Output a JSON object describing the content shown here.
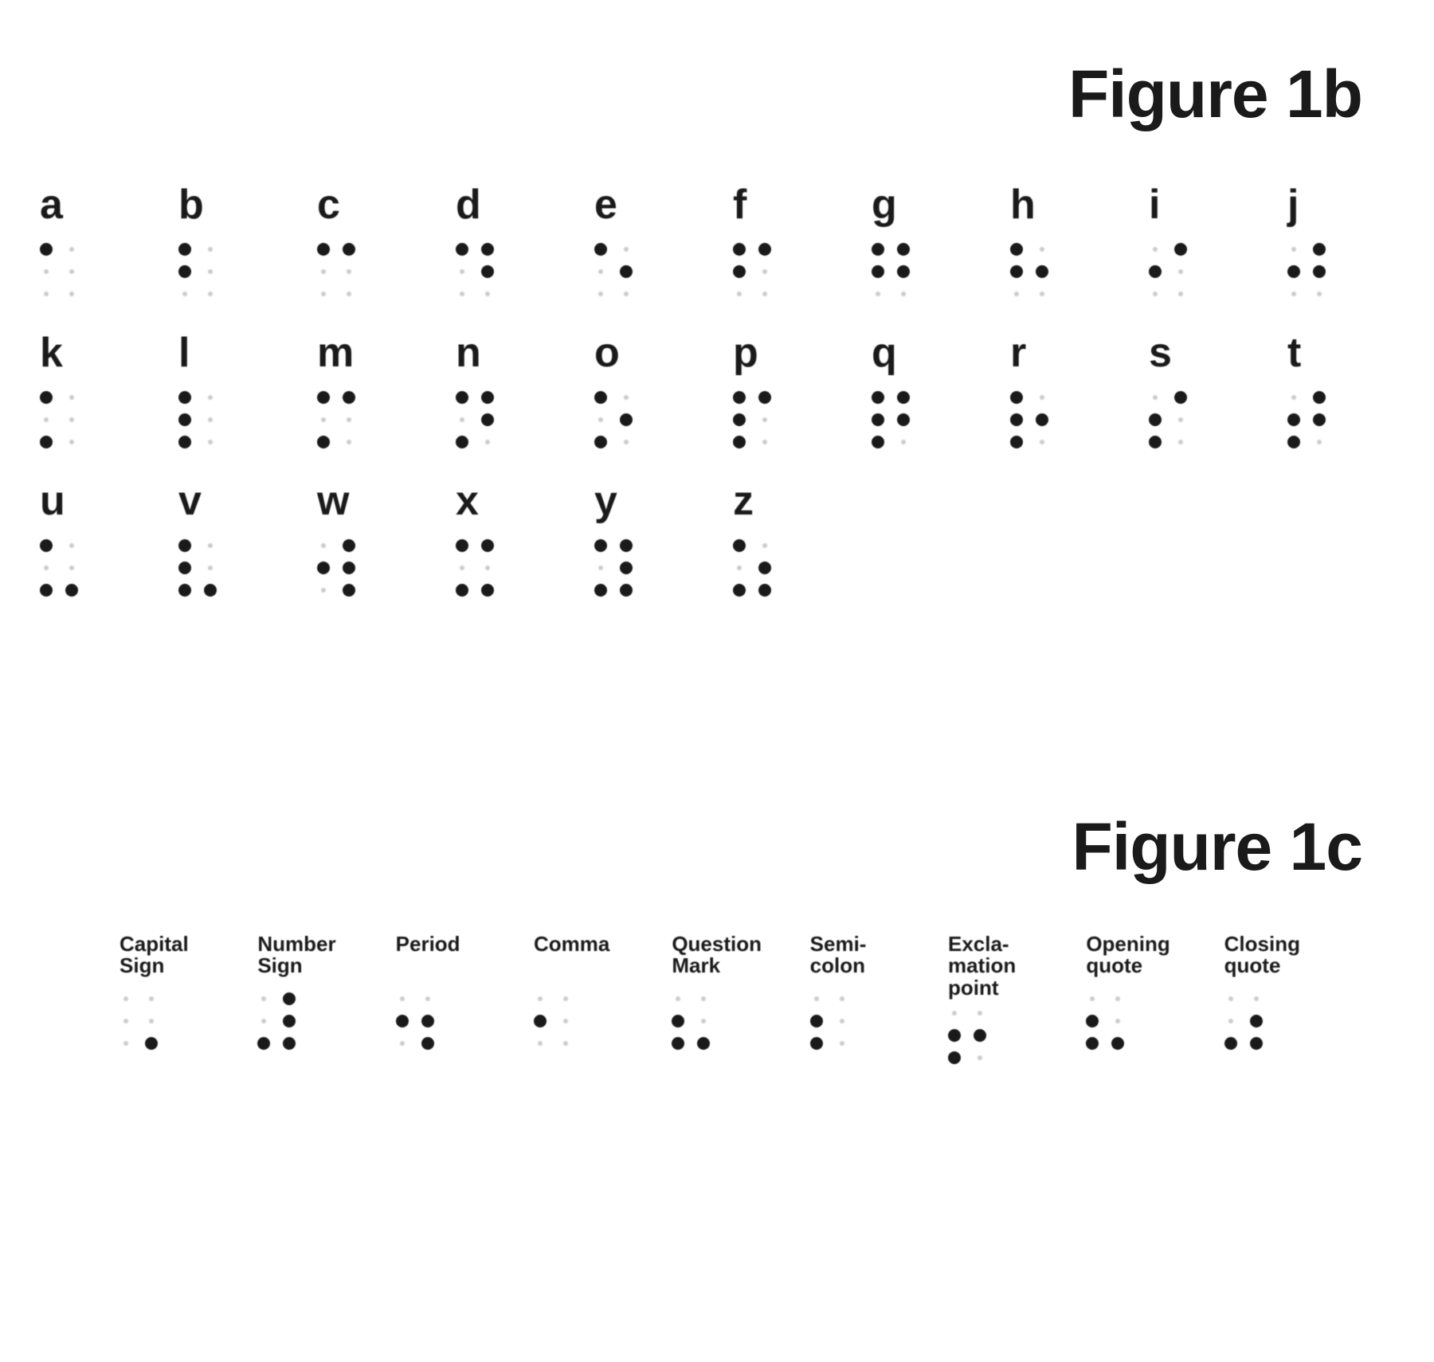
{
  "figure_b": {
    "title": "Figure 1b",
    "title_fontsize": 84,
    "letter_fontsize": 52,
    "dot_color": "#1a1a1a",
    "faint_dot_color": "#999999",
    "background": "#ffffff",
    "columns": 10,
    "rows": [
      [
        {
          "label": "a",
          "dots": [
            1,
            0,
            0,
            0,
            0,
            0
          ]
        },
        {
          "label": "b",
          "dots": [
            1,
            0,
            1,
            0,
            0,
            0
          ]
        },
        {
          "label": "c",
          "dots": [
            1,
            1,
            0,
            0,
            0,
            0
          ]
        },
        {
          "label": "d",
          "dots": [
            1,
            1,
            0,
            1,
            0,
            0
          ]
        },
        {
          "label": "e",
          "dots": [
            1,
            0,
            0,
            1,
            0,
            0
          ]
        },
        {
          "label": "f",
          "dots": [
            1,
            1,
            1,
            0,
            0,
            0
          ]
        },
        {
          "label": "g",
          "dots": [
            1,
            1,
            1,
            1,
            0,
            0
          ]
        },
        {
          "label": "h",
          "dots": [
            1,
            0,
            1,
            1,
            0,
            0
          ]
        },
        {
          "label": "i",
          "dots": [
            0,
            1,
            1,
            0,
            0,
            0
          ]
        },
        {
          "label": "j",
          "dots": [
            0,
            1,
            1,
            1,
            0,
            0
          ]
        }
      ],
      [
        {
          "label": "k",
          "dots": [
            1,
            0,
            0,
            0,
            1,
            0
          ]
        },
        {
          "label": "l",
          "dots": [
            1,
            0,
            1,
            0,
            1,
            0
          ]
        },
        {
          "label": "m",
          "dots": [
            1,
            1,
            0,
            0,
            1,
            0
          ]
        },
        {
          "label": "n",
          "dots": [
            1,
            1,
            0,
            1,
            1,
            0
          ]
        },
        {
          "label": "o",
          "dots": [
            1,
            0,
            0,
            1,
            1,
            0
          ]
        },
        {
          "label": "p",
          "dots": [
            1,
            1,
            1,
            0,
            1,
            0
          ]
        },
        {
          "label": "q",
          "dots": [
            1,
            1,
            1,
            1,
            1,
            0
          ]
        },
        {
          "label": "r",
          "dots": [
            1,
            0,
            1,
            1,
            1,
            0
          ]
        },
        {
          "label": "s",
          "dots": [
            0,
            1,
            1,
            0,
            1,
            0
          ]
        },
        {
          "label": "t",
          "dots": [
            0,
            1,
            1,
            1,
            1,
            0
          ]
        }
      ],
      [
        {
          "label": "u",
          "dots": [
            1,
            0,
            0,
            0,
            1,
            1
          ]
        },
        {
          "label": "v",
          "dots": [
            1,
            0,
            1,
            0,
            1,
            1
          ]
        },
        {
          "label": "w",
          "dots": [
            0,
            1,
            1,
            1,
            0,
            1
          ]
        },
        {
          "label": "x",
          "dots": [
            1,
            1,
            0,
            0,
            1,
            1
          ]
        },
        {
          "label": "y",
          "dots": [
            1,
            1,
            0,
            1,
            1,
            1
          ]
        },
        {
          "label": "z",
          "dots": [
            1,
            0,
            0,
            1,
            1,
            1
          ]
        }
      ]
    ]
  },
  "figure_c": {
    "title": "Figure 1c",
    "title_fontsize": 84,
    "label_fontsize": 26,
    "columns": 9,
    "items": [
      {
        "label": "Capital\nSign",
        "dots": [
          0,
          0,
          0,
          0,
          0,
          1
        ]
      },
      {
        "label": "Number\nSign",
        "dots": [
          0,
          1,
          0,
          1,
          1,
          1
        ]
      },
      {
        "label": "Period",
        "dots": [
          0,
          0,
          1,
          1,
          0,
          1
        ]
      },
      {
        "label": "Comma",
        "dots": [
          0,
          0,
          1,
          0,
          0,
          0
        ]
      },
      {
        "label": "Question\nMark",
        "dots": [
          0,
          0,
          1,
          0,
          1,
          1
        ]
      },
      {
        "label": "Semi-\ncolon",
        "dots": [
          0,
          0,
          1,
          0,
          1,
          0
        ]
      },
      {
        "label": "Excla-\nmation\npoint",
        "dots": [
          0,
          0,
          1,
          1,
          1,
          0
        ]
      },
      {
        "label": "Opening\nquote",
        "dots": [
          0,
          0,
          1,
          0,
          1,
          1
        ]
      },
      {
        "label": "Closing\nquote",
        "dots": [
          0,
          0,
          0,
          1,
          1,
          1
        ]
      }
    ]
  }
}
